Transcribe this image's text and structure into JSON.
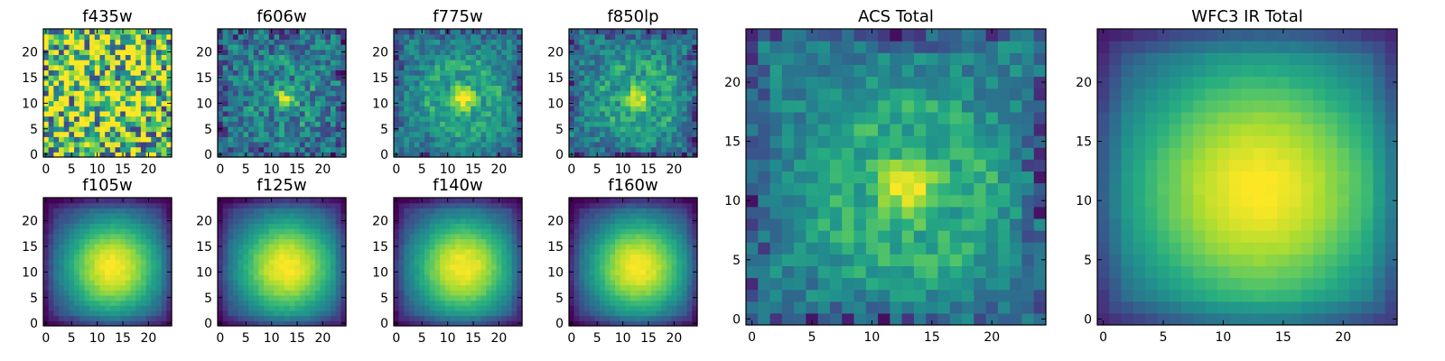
{
  "chart_data": {
    "type": "heatmap",
    "colormap": "viridis",
    "colormap_stops": [
      "#440154",
      "#472c7a",
      "#3b518b",
      "#2c718e",
      "#21908d",
      "#27ad81",
      "#5cc863",
      "#aadc32",
      "#fde725"
    ],
    "grid_size": [
      25,
      25
    ],
    "panels": [
      {
        "title": "f435w",
        "xticks": [
          "0",
          "5",
          "10",
          "15",
          "20"
        ],
        "yticks": [
          "0",
          "5",
          "10",
          "15",
          "20"
        ],
        "xlim": [
          -0.5,
          24.5
        ],
        "ylim": [
          -0.5,
          24.5
        ],
        "peak": [
          12,
          11
        ],
        "character": "noise-dominated, mostly green-yellow"
      },
      {
        "title": "f606w",
        "xticks": [
          "0",
          "5",
          "10",
          "15",
          "20"
        ],
        "yticks": [
          "0",
          "5",
          "10",
          "15",
          "20"
        ],
        "xlim": [
          -0.5,
          24.5
        ],
        "ylim": [
          -0.5,
          24.5
        ],
        "peak": [
          13,
          11
        ],
        "character": "compact bright core on blue-green noisy background"
      },
      {
        "title": "f775w",
        "xticks": [
          "0",
          "5",
          "10",
          "15",
          "20"
        ],
        "yticks": [
          "0",
          "5",
          "10",
          "15",
          "20"
        ],
        "xlim": [
          -0.5,
          24.5
        ],
        "ylim": [
          -0.5,
          24.5
        ],
        "peak": [
          13,
          11
        ],
        "character": "bright core with ring structure"
      },
      {
        "title": "f850lp",
        "xticks": [
          "0",
          "5",
          "10",
          "15",
          "20"
        ],
        "yticks": [
          "0",
          "5",
          "10",
          "15",
          "20"
        ],
        "xlim": [
          -0.5,
          24.5
        ],
        "ylim": [
          -0.5,
          24.5
        ],
        "peak": [
          13,
          11
        ],
        "character": "bright core with ring structure"
      },
      {
        "title": "ACS Total",
        "xticks": [
          "0",
          "5",
          "10",
          "15",
          "20"
        ],
        "yticks": [
          "0",
          "5",
          "10",
          "15",
          "20"
        ],
        "xlim": [
          -0.5,
          24.5
        ],
        "ylim": [
          -0.5,
          24.5
        ],
        "peak": [
          13,
          11
        ],
        "character": "bright core with ring structure"
      },
      {
        "title": "WFC3 IR Total",
        "xticks": [
          "0",
          "5",
          "10",
          "15",
          "20"
        ],
        "yticks": [
          "0",
          "5",
          "10",
          "15",
          "20"
        ],
        "xlim": [
          -0.5,
          24.5
        ],
        "ylim": [
          -0.5,
          24.5
        ],
        "peak": [
          13,
          11
        ],
        "character": "smooth extended profile"
      },
      {
        "title": "f105w",
        "xticks": [
          "0",
          "5",
          "10",
          "15",
          "20"
        ],
        "yticks": [
          "0",
          "5",
          "10",
          "15",
          "20"
        ],
        "xlim": [
          -0.5,
          24.5
        ],
        "ylim": [
          -0.5,
          24.5
        ],
        "peak": [
          13,
          11
        ],
        "character": "smooth extended profile"
      },
      {
        "title": "f125w",
        "xticks": [
          "0",
          "5",
          "10",
          "15",
          "20"
        ],
        "yticks": [
          "0",
          "5",
          "10",
          "15",
          "20"
        ],
        "xlim": [
          -0.5,
          24.5
        ],
        "ylim": [
          -0.5,
          24.5
        ],
        "peak": [
          13,
          11
        ],
        "character": "smooth extended profile"
      },
      {
        "title": "f140w",
        "xticks": [
          "0",
          "5",
          "10",
          "15",
          "20"
        ],
        "yticks": [
          "0",
          "5",
          "10",
          "15",
          "20"
        ],
        "xlim": [
          -0.5,
          24.5
        ],
        "ylim": [
          -0.5,
          24.5
        ],
        "peak": [
          13,
          11
        ],
        "character": "smooth extended profile"
      },
      {
        "title": "f160w",
        "xticks": [
          "0",
          "5",
          "10",
          "15",
          "20"
        ],
        "yticks": [
          "0",
          "5",
          "10",
          "15",
          "20"
        ],
        "xlim": [
          -0.5,
          24.5
        ],
        "ylim": [
          -0.5,
          24.5
        ],
        "peak": [
          13,
          11
        ],
        "character": "smooth extended profile"
      }
    ]
  }
}
